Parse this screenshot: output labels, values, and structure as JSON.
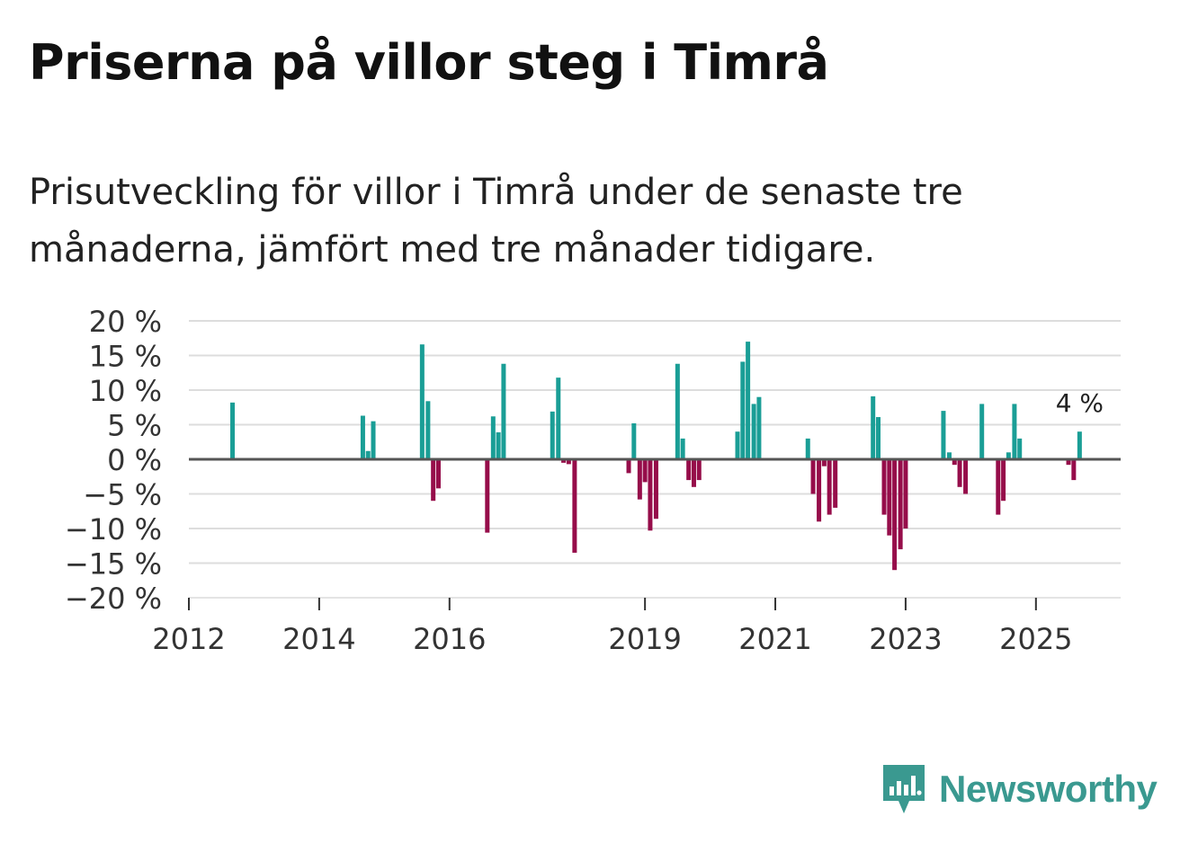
{
  "title": "Priserna på villor steg i Timrå",
  "subtitle": "Prisutveckling för villor i Timrå under de senaste tre månaderna, jämfört med tre månader tidigare.",
  "brand": {
    "name": "Newsworthy",
    "icon": "newsworthy-logo-icon"
  },
  "colors": {
    "positive": "#1a9e96",
    "negative": "#960d4a",
    "grid": "#dddddd",
    "zero_line": "#555555"
  },
  "chart_data": {
    "type": "bar",
    "title": "Priserna på villor steg i Timrå",
    "ylabel": "",
    "xlabel": "",
    "ylim": [
      -20,
      20
    ],
    "xlim": [
      2012.0,
      2026.3
    ],
    "y_ticks": [
      {
        "value": 20,
        "label": "20 %"
      },
      {
        "value": 15,
        "label": "15 %"
      },
      {
        "value": 10,
        "label": "10 %"
      },
      {
        "value": 5,
        "label": "5 %"
      },
      {
        "value": 0,
        "label": "0 %"
      },
      {
        "value": -5,
        "label": "−5 %"
      },
      {
        "value": -10,
        "label": "−10 %"
      },
      {
        "value": -15,
        "label": "−15 %"
      },
      {
        "value": -20,
        "label": "−20 %"
      }
    ],
    "x_ticks": [
      {
        "value": 2012,
        "label": "2012"
      },
      {
        "value": 2014,
        "label": "2014"
      },
      {
        "value": 2016,
        "label": "2016"
      },
      {
        "value": 2019,
        "label": "2019"
      },
      {
        "value": 2021,
        "label": "2021"
      },
      {
        "value": 2023,
        "label": "2023"
      },
      {
        "value": 2025,
        "label": "2025"
      }
    ],
    "annotation": {
      "label": "4 %",
      "x": 2025.67,
      "y": 4
    },
    "x": [
      2012.67,
      2014.67,
      2014.75,
      2014.83,
      2015.58,
      2015.67,
      2015.75,
      2015.83,
      2016.58,
      2016.67,
      2016.75,
      2016.83,
      2017.58,
      2017.67,
      2017.75,
      2017.83,
      2017.92,
      2018.75,
      2018.83,
      2018.92,
      2019.0,
      2019.08,
      2019.17,
      2019.5,
      2019.58,
      2019.67,
      2019.75,
      2019.83,
      2020.42,
      2020.5,
      2020.58,
      2020.67,
      2020.75,
      2021.5,
      2021.58,
      2021.67,
      2021.75,
      2021.83,
      2021.92,
      2022.5,
      2022.58,
      2022.67,
      2022.75,
      2022.83,
      2022.92,
      2023.0,
      2023.58,
      2023.67,
      2023.75,
      2023.83,
      2023.92,
      2024.17,
      2024.42,
      2024.5,
      2024.58,
      2024.67,
      2024.75,
      2025.5,
      2025.58,
      2025.67
    ],
    "values": [
      8.2,
      6.3,
      1.2,
      5.5,
      16.6,
      8.4,
      -6.0,
      -4.2,
      -10.6,
      6.2,
      3.9,
      13.8,
      6.9,
      11.8,
      -0.5,
      -0.7,
      -13.5,
      -2.0,
      5.2,
      -5.8,
      -3.3,
      -10.3,
      -8.6,
      13.8,
      3.0,
      -3.0,
      -4.0,
      -3.0,
      4.0,
      14.1,
      17.0,
      8.0,
      9.0,
      3.0,
      -5.0,
      -9.0,
      -1.0,
      -8.0,
      -7.0,
      9.1,
      6.1,
      -8.0,
      -11.0,
      -16.0,
      -13.0,
      -10.0,
      7.0,
      1.0,
      -0.8,
      -4.0,
      -5.0,
      8.0,
      -8.0,
      -6.0,
      1.0,
      8.0,
      3.0,
      -0.8,
      -3.0,
      4.0
    ]
  }
}
